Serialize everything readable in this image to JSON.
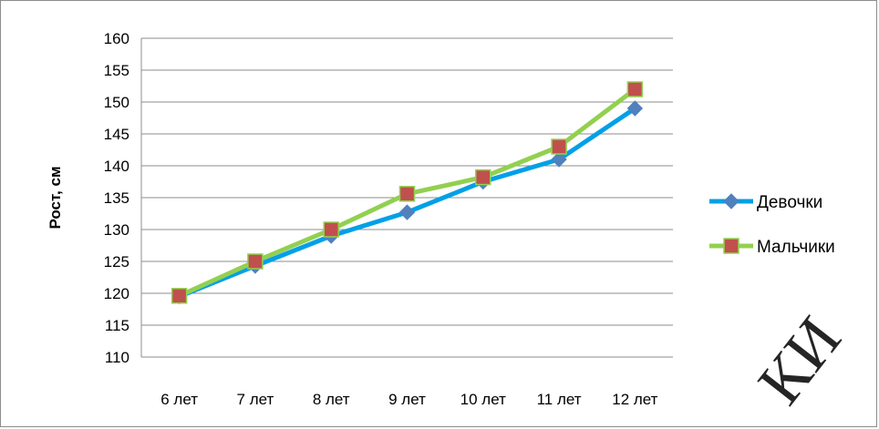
{
  "chart_data": {
    "type": "line",
    "categories": [
      "6 лет",
      "7 лет",
      "8 лет",
      "9 лет",
      "10 лет",
      "11 лет",
      "12 лет"
    ],
    "series": [
      {
        "name": "Девочки",
        "values": [
          119.5,
          124.3,
          129.0,
          132.7,
          137.5,
          141.0,
          149.0
        ],
        "color": "#00a0e8",
        "marker": "diamond",
        "marker_color": "#4f81bd"
      },
      {
        "name": "Мальчики",
        "values": [
          119.6,
          125.0,
          130.0,
          135.6,
          138.2,
          143.0,
          152.0
        ],
        "color": "#92d050",
        "marker": "square",
        "marker_color": "#c0504d"
      }
    ],
    "ylabel": "Рост, см",
    "xlabel": "",
    "ylim": [
      110,
      160
    ],
    "ytick_step": 5,
    "grid": true,
    "legend_position": "right"
  },
  "watermark_text": "КИ"
}
